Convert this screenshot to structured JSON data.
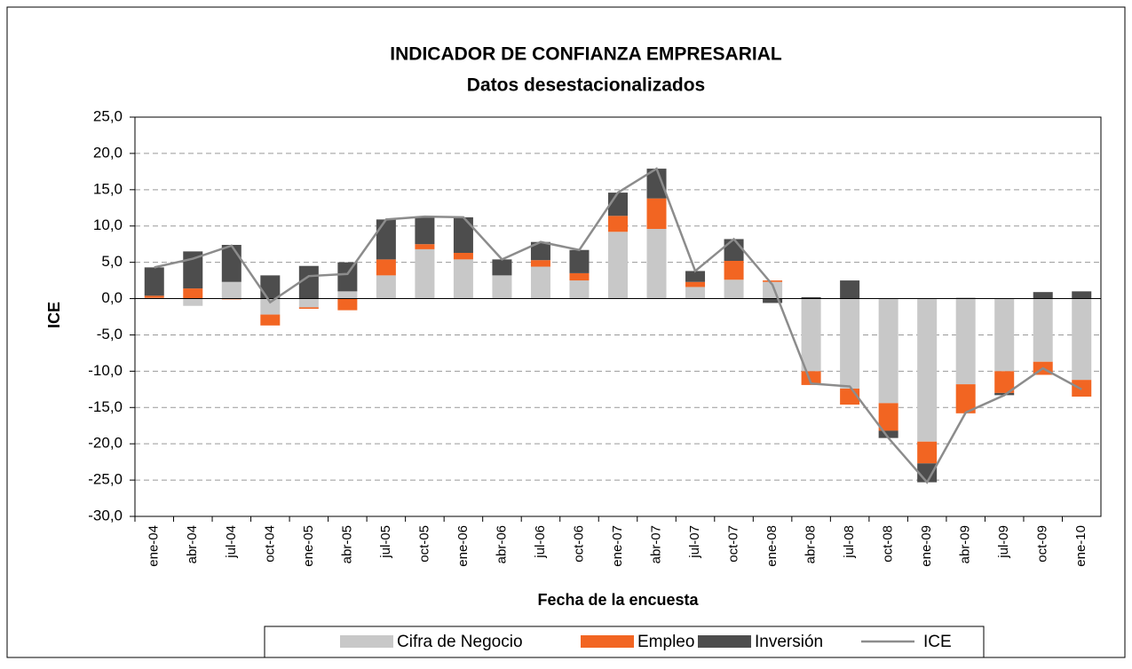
{
  "chart_data": {
    "type": "stacked-bar-line",
    "title": "INDICADOR DE CONFIANZA EMPRESARIAL",
    "subtitle": "Datos desestacionalizados",
    "x_label": "Fecha de la encuesta",
    "y_label": "ICE",
    "categories": [
      "ene-04",
      "abr-04",
      "jul-04",
      "oct-04",
      "ene-05",
      "abr-05",
      "jul-05",
      "oct-05",
      "ene-06",
      "abr-06",
      "jul-06",
      "oct-06",
      "ene-07",
      "abr-07",
      "jul-07",
      "oct-07",
      "ene-08",
      "abr-08",
      "jul-08",
      "oct-08",
      "ene-09",
      "abr-09",
      "jul-09",
      "oct-09",
      "ene-10"
    ],
    "series": [
      {
        "name": "Cifra de Negocio",
        "kind": "bar",
        "color": "#c8c8c8",
        "values": [
          0.1,
          -1.0,
          2.3,
          -2.2,
          -1.2,
          1.0,
          3.2,
          6.8,
          5.4,
          3.2,
          4.4,
          2.5,
          9.2,
          9.6,
          1.6,
          2.6,
          2.3,
          -10.0,
          -12.4,
          -14.4,
          -19.7,
          -11.8,
          -10.0,
          -8.7,
          -11.2
        ]
      },
      {
        "name": "Empleo",
        "kind": "bar",
        "color": "#f26522",
        "values": [
          0.3,
          1.4,
          -0.1,
          -1.5,
          -0.2,
          -1.6,
          2.2,
          0.7,
          0.9,
          0.0,
          0.9,
          1.0,
          2.2,
          4.2,
          0.7,
          2.6,
          0.2,
          -1.9,
          -2.2,
          -3.8,
          -3.0,
          -4.0,
          -3.0,
          -1.8,
          -2.3
        ]
      },
      {
        "name": "Inversión",
        "kind": "bar",
        "color": "#4d4d4d",
        "values": [
          3.9,
          5.1,
          5.1,
          3.2,
          4.5,
          4.0,
          5.5,
          3.8,
          4.9,
          2.2,
          2.5,
          3.2,
          3.2,
          4.1,
          1.5,
          3.0,
          -0.6,
          0.2,
          2.5,
          -1.0,
          -2.6,
          0.1,
          -0.3,
          0.9,
          1.0
        ]
      },
      {
        "name": "ICE",
        "kind": "line",
        "color": "#8c8c8c",
        "values": [
          4.3,
          5.5,
          7.3,
          -0.5,
          3.1,
          3.4,
          10.9,
          11.3,
          11.2,
          5.4,
          7.8,
          6.7,
          14.6,
          17.9,
          3.8,
          8.2,
          1.9,
          -11.7,
          -12.1,
          -19.2,
          -25.3,
          -15.7,
          -13.3,
          -9.6,
          -12.5
        ]
      }
    ],
    "ylim": [
      -30,
      25
    ],
    "yticks": [
      {
        "value": -30,
        "label": "-30,0"
      },
      {
        "value": -25,
        "label": "-25,0"
      },
      {
        "value": -20,
        "label": "-20,0"
      },
      {
        "value": -15,
        "label": "-15,0"
      },
      {
        "value": -10,
        "label": "-10,0"
      },
      {
        "value": -5,
        "label": "-5,0"
      },
      {
        "value": 0,
        "label": "0,0"
      },
      {
        "value": 5,
        "label": "5,0"
      },
      {
        "value": 10,
        "label": "10,0"
      },
      {
        "value": 15,
        "label": "15,0"
      },
      {
        "value": 20,
        "label": "20,0"
      },
      {
        "value": 25,
        "label": "25,0"
      }
    ],
    "grid": true,
    "legend": "bottom"
  }
}
